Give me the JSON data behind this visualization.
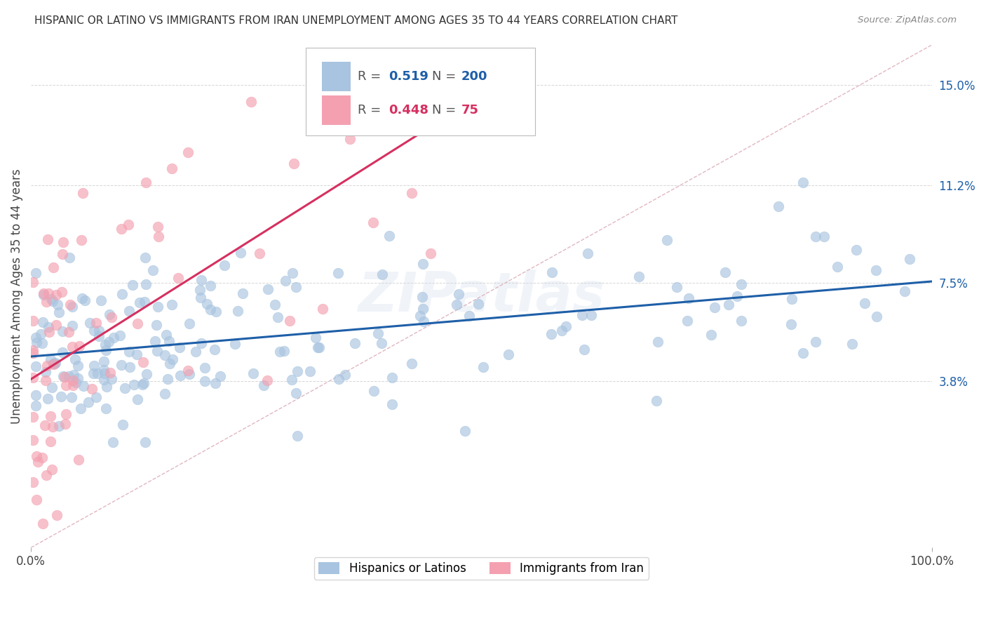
{
  "title": "HISPANIC OR LATINO VS IMMIGRANTS FROM IRAN UNEMPLOYMENT AMONG AGES 35 TO 44 YEARS CORRELATION CHART",
  "source": "Source: ZipAtlas.com",
  "ylabel": "Unemployment Among Ages 35 to 44 years",
  "xlim": [
    0,
    100
  ],
  "ylim": [
    -2.5,
    16.5
  ],
  "yticks": [
    3.8,
    7.5,
    11.2,
    15.0
  ],
  "xticklabels": [
    "0.0%",
    "100.0%"
  ],
  "blue_R": 0.519,
  "blue_N": 200,
  "pink_R": 0.448,
  "pink_N": 75,
  "blue_color": "#a8c4e0",
  "blue_line_color": "#1e5fa8",
  "pink_color": "#f4a0b0",
  "pink_line_color": "#d63060",
  "diagonal_color": "#ddb0b8",
  "watermark": "ZIPatlas",
  "grid_color": "#cccccc",
  "background_color": "#ffffff"
}
